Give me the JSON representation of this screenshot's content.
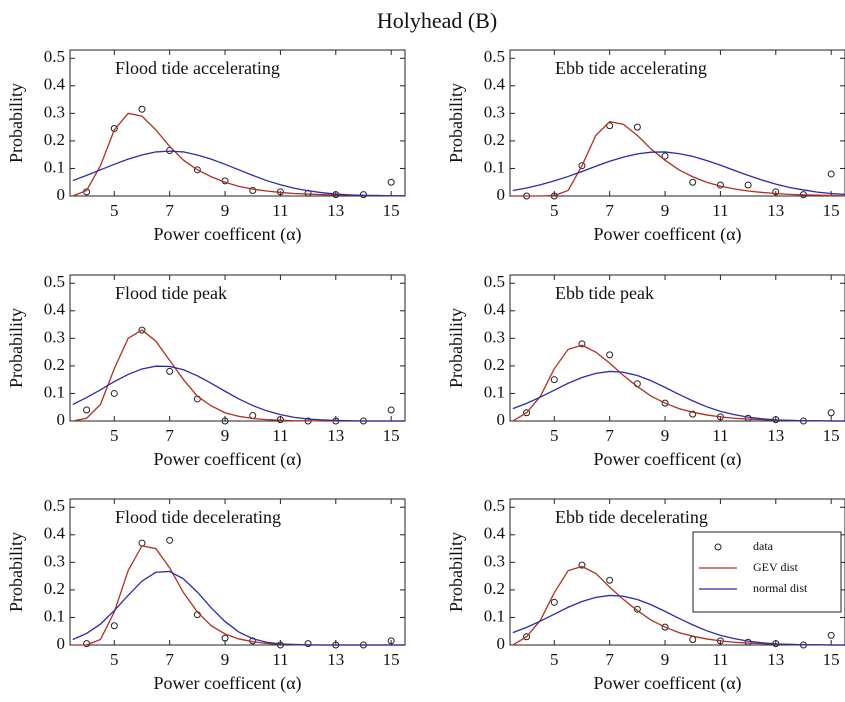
{
  "title": "Holyhead (B)",
  "chart_data": [
    {
      "type": "line",
      "title": "Flood tide accelerating",
      "xlabel": "Power coefficent (α)",
      "ylabel": "Probability",
      "xlim": [
        3.4,
        15.5
      ],
      "ylim": [
        0,
        0.53
      ],
      "xticks": [
        5,
        7,
        9,
        11,
        13,
        15
      ],
      "yticks": [
        0,
        0.1,
        0.2,
        0.3,
        0.4,
        0.5
      ],
      "series": [
        {
          "name": "data",
          "type": "scatter",
          "color": "#222222",
          "x": [
            4,
            5,
            6,
            7,
            8,
            9,
            10,
            11,
            12,
            13,
            14,
            15
          ],
          "values": [
            0.015,
            0.245,
            0.315,
            0.165,
            0.095,
            0.055,
            0.02,
            0.015,
            0.01,
            0.005,
            0.005,
            0.05
          ]
        },
        {
          "name": "GEV dist",
          "type": "line",
          "color": "#b03020",
          "x": [
            3.5,
            4,
            4.5,
            5,
            5.5,
            6,
            6.5,
            7,
            7.5,
            8,
            8.5,
            9,
            9.5,
            10,
            10.5,
            11,
            11.5,
            12,
            12.5,
            13,
            13.5,
            14,
            14.5,
            15,
            15.5
          ],
          "values": [
            0,
            0.02,
            0.11,
            0.24,
            0.3,
            0.29,
            0.24,
            0.18,
            0.13,
            0.095,
            0.07,
            0.05,
            0.035,
            0.025,
            0.018,
            0.013,
            0.009,
            0.007,
            0.005,
            0.004,
            0.003,
            0.002,
            0.002,
            0.001,
            0.001
          ]
        },
        {
          "name": "normal dist",
          "type": "line",
          "color": "#2b2ba8",
          "x": [
            3.5,
            4,
            4.5,
            5,
            5.5,
            6,
            6.5,
            7,
            7.5,
            8,
            8.5,
            9,
            9.5,
            10,
            10.5,
            11,
            11.5,
            12,
            12.5,
            13,
            13.5,
            14,
            14.5,
            15,
            15.5
          ],
          "values": [
            0.056,
            0.075,
            0.095,
            0.115,
            0.134,
            0.149,
            0.16,
            0.163,
            0.16,
            0.149,
            0.134,
            0.115,
            0.095,
            0.075,
            0.056,
            0.041,
            0.028,
            0.019,
            0.012,
            0.007,
            0.004,
            0.002,
            0.001,
            0.001,
            0
          ]
        }
      ]
    },
    {
      "type": "line",
      "title": "Ebb tide accelerating",
      "xlabel": "Power coefficent (α)",
      "ylabel": "Probability",
      "xlim": [
        3.4,
        15.5
      ],
      "ylim": [
        0,
        0.53
      ],
      "xticks": [
        5,
        7,
        9,
        11,
        13,
        15
      ],
      "yticks": [
        0,
        0.1,
        0.2,
        0.3,
        0.4,
        0.5
      ],
      "series": [
        {
          "name": "data",
          "type": "scatter",
          "color": "#222222",
          "x": [
            4,
            5,
            6,
            7,
            8,
            9,
            10,
            11,
            12,
            13,
            14,
            15
          ],
          "values": [
            0,
            0,
            0.11,
            0.255,
            0.25,
            0.145,
            0.05,
            0.04,
            0.04,
            0.015,
            0.005,
            0.08
          ]
        },
        {
          "name": "GEV dist",
          "type": "line",
          "color": "#b03020",
          "x": [
            3.5,
            4,
            4.5,
            5,
            5.5,
            6,
            6.5,
            7,
            7.5,
            8,
            8.5,
            9,
            9.5,
            10,
            10.5,
            11,
            11.5,
            12,
            12.5,
            13,
            13.5,
            14,
            14.5,
            15,
            15.5
          ],
          "values": [
            0,
            0,
            0,
            0.002,
            0.02,
            0.11,
            0.22,
            0.27,
            0.26,
            0.22,
            0.17,
            0.13,
            0.095,
            0.07,
            0.05,
            0.036,
            0.026,
            0.018,
            0.013,
            0.009,
            0.006,
            0.004,
            0.003,
            0.002,
            0.001
          ]
        },
        {
          "name": "normal dist",
          "type": "line",
          "color": "#2b2ba8",
          "x": [
            3.5,
            4,
            4.5,
            5,
            5.5,
            6,
            6.5,
            7,
            7.5,
            8,
            8.5,
            9,
            9.5,
            10,
            10.5,
            11,
            11.5,
            12,
            12.5,
            13,
            13.5,
            14,
            14.5,
            15,
            15.5
          ],
          "values": [
            0.02,
            0.029,
            0.041,
            0.055,
            0.071,
            0.089,
            0.108,
            0.126,
            0.141,
            0.153,
            0.159,
            0.16,
            0.154,
            0.144,
            0.129,
            0.112,
            0.093,
            0.075,
            0.058,
            0.043,
            0.031,
            0.022,
            0.014,
            0.009,
            0.006
          ]
        }
      ]
    },
    {
      "type": "line",
      "title": "Flood tide peak",
      "xlabel": "Power coefficent (α)",
      "ylabel": "Probability",
      "xlim": [
        3.4,
        15.5
      ],
      "ylim": [
        0,
        0.53
      ],
      "xticks": [
        5,
        7,
        9,
        11,
        13,
        15
      ],
      "yticks": [
        0,
        0.1,
        0.2,
        0.3,
        0.4,
        0.5
      ],
      "series": [
        {
          "name": "data",
          "type": "scatter",
          "color": "#222222",
          "x": [
            4,
            5,
            6,
            7,
            8,
            9,
            10,
            11,
            12,
            13,
            14,
            15
          ],
          "values": [
            0.04,
            0.1,
            0.33,
            0.18,
            0.08,
            0,
            0.02,
            0.005,
            0,
            0,
            0,
            0.04
          ]
        },
        {
          "name": "GEV dist",
          "type": "line",
          "color": "#b03020",
          "x": [
            3.5,
            4,
            4.5,
            5,
            5.5,
            6,
            6.5,
            7,
            7.5,
            8,
            8.5,
            9,
            9.5,
            10,
            10.5,
            11,
            11.5,
            12,
            12.5,
            13,
            13.5,
            14,
            14.5,
            15,
            15.5
          ],
          "values": [
            0,
            0.01,
            0.06,
            0.19,
            0.3,
            0.33,
            0.29,
            0.22,
            0.15,
            0.09,
            0.055,
            0.03,
            0.017,
            0.009,
            0.005,
            0.003,
            0.001,
            0.001,
            0,
            0,
            0,
            0,
            0,
            0,
            0
          ]
        },
        {
          "name": "normal dist",
          "type": "line",
          "color": "#2b2ba8",
          "x": [
            3.5,
            4,
            4.5,
            5,
            5.5,
            6,
            6.5,
            7,
            7.5,
            8,
            8.5,
            9,
            9.5,
            10,
            10.5,
            11,
            11.5,
            12,
            12.5,
            13,
            13.5,
            14,
            14.5,
            15,
            15.5
          ],
          "values": [
            0.06,
            0.085,
            0.113,
            0.143,
            0.169,
            0.189,
            0.199,
            0.198,
            0.186,
            0.164,
            0.137,
            0.108,
            0.08,
            0.056,
            0.037,
            0.023,
            0.013,
            0.007,
            0.004,
            0.002,
            0.001,
            0,
            0,
            0,
            0
          ]
        }
      ]
    },
    {
      "type": "line",
      "title": "Ebb tide peak",
      "xlabel": "Power coefficent (α)",
      "ylabel": "Probability",
      "xlim": [
        3.4,
        15.5
      ],
      "ylim": [
        0,
        0.53
      ],
      "xticks": [
        5,
        7,
        9,
        11,
        13,
        15
      ],
      "yticks": [
        0,
        0.1,
        0.2,
        0.3,
        0.4,
        0.5
      ],
      "series": [
        {
          "name": "data",
          "type": "scatter",
          "color": "#222222",
          "x": [
            4,
            5,
            6,
            7,
            8,
            9,
            10,
            11,
            12,
            13,
            14,
            15
          ],
          "values": [
            0.03,
            0.15,
            0.28,
            0.24,
            0.135,
            0.065,
            0.025,
            0.015,
            0.01,
            0.005,
            0,
            0.03
          ]
        },
        {
          "name": "GEV dist",
          "type": "line",
          "color": "#b03020",
          "x": [
            3.5,
            4,
            4.5,
            5,
            5.5,
            6,
            6.5,
            7,
            7.5,
            8,
            8.5,
            9,
            9.5,
            10,
            10.5,
            11,
            11.5,
            12,
            12.5,
            13,
            13.5,
            14,
            14.5,
            15,
            15.5
          ],
          "values": [
            0,
            0.03,
            0.09,
            0.19,
            0.26,
            0.275,
            0.25,
            0.21,
            0.165,
            0.125,
            0.09,
            0.065,
            0.045,
            0.032,
            0.022,
            0.015,
            0.01,
            0.007,
            0.005,
            0.003,
            0.002,
            0.001,
            0.001,
            0,
            0
          ]
        },
        {
          "name": "normal dist",
          "type": "line",
          "color": "#2b2ba8",
          "x": [
            3.5,
            4,
            4.5,
            5,
            5.5,
            6,
            6.5,
            7,
            7.5,
            8,
            8.5,
            9,
            9.5,
            10,
            10.5,
            11,
            11.5,
            12,
            12.5,
            13,
            13.5,
            14,
            14.5,
            15,
            15.5
          ],
          "values": [
            0.045,
            0.064,
            0.087,
            0.112,
            0.137,
            0.158,
            0.173,
            0.18,
            0.177,
            0.165,
            0.146,
            0.122,
            0.097,
            0.073,
            0.052,
            0.035,
            0.023,
            0.014,
            0.008,
            0.004,
            0.002,
            0.001,
            0.001,
            0,
            0
          ]
        }
      ]
    },
    {
      "type": "line",
      "title": "Flood tide decelerating",
      "xlabel": "Power coefficent (α)",
      "ylabel": "Probability",
      "xlim": [
        3.4,
        15.5
      ],
      "ylim": [
        0,
        0.53
      ],
      "xticks": [
        5,
        7,
        9,
        11,
        13,
        15
      ],
      "yticks": [
        0,
        0.1,
        0.2,
        0.3,
        0.4,
        0.5
      ],
      "series": [
        {
          "name": "data",
          "type": "scatter",
          "color": "#222222",
          "x": [
            4,
            5,
            6,
            7,
            8,
            9,
            10,
            11,
            12,
            13,
            14,
            15
          ],
          "values": [
            0.005,
            0.07,
            0.37,
            0.38,
            0.11,
            0.025,
            0.015,
            0,
            0.005,
            0,
            0,
            0.015
          ]
        },
        {
          "name": "GEV dist",
          "type": "line",
          "color": "#b03020",
          "x": [
            3.5,
            4,
            4.5,
            5,
            5.5,
            6,
            6.5,
            7,
            7.5,
            8,
            8.5,
            9,
            9.5,
            10,
            10.5,
            11,
            11.5,
            12,
            12.5,
            13,
            13.5,
            14,
            14.5,
            15,
            15.5
          ],
          "values": [
            0,
            0,
            0.02,
            0.12,
            0.27,
            0.36,
            0.35,
            0.28,
            0.19,
            0.12,
            0.07,
            0.04,
            0.022,
            0.012,
            0.006,
            0.003,
            0.002,
            0.001,
            0,
            0,
            0,
            0,
            0,
            0,
            0
          ]
        },
        {
          "name": "normal dist",
          "type": "line",
          "color": "#2b2ba8",
          "x": [
            3.5,
            4,
            4.5,
            5,
            5.5,
            6,
            6.5,
            7,
            7.5,
            8,
            8.5,
            9,
            9.5,
            10,
            10.5,
            11,
            11.5,
            12,
            12.5,
            13,
            13.5,
            14,
            14.5,
            15,
            15.5
          ],
          "values": [
            0.02,
            0.042,
            0.076,
            0.125,
            0.18,
            0.232,
            0.264,
            0.267,
            0.24,
            0.192,
            0.135,
            0.085,
            0.047,
            0.023,
            0.01,
            0.004,
            0.001,
            0,
            0,
            0,
            0,
            0,
            0,
            0,
            0
          ]
        }
      ]
    },
    {
      "type": "line",
      "title": "Ebb tide decelerating",
      "xlabel": "Power coefficent (α)",
      "ylabel": "Probability",
      "xlim": [
        3.4,
        15.5
      ],
      "ylim": [
        0,
        0.53
      ],
      "xticks": [
        5,
        7,
        9,
        11,
        13,
        15
      ],
      "yticks": [
        0,
        0.1,
        0.2,
        0.3,
        0.4,
        0.5
      ],
      "legend": "center right",
      "series": [
        {
          "name": "data",
          "type": "scatter",
          "color": "#222222",
          "x": [
            4,
            5,
            6,
            7,
            8,
            9,
            10,
            11,
            12,
            13,
            14,
            15
          ],
          "values": [
            0.03,
            0.155,
            0.29,
            0.235,
            0.13,
            0.065,
            0.02,
            0.015,
            0.01,
            0.005,
            0,
            0.035
          ]
        },
        {
          "name": "GEV dist",
          "type": "line",
          "color": "#b03020",
          "x": [
            3.5,
            4,
            4.5,
            5,
            5.5,
            6,
            6.5,
            7,
            7.5,
            8,
            8.5,
            9,
            9.5,
            10,
            10.5,
            11,
            11.5,
            12,
            12.5,
            13,
            13.5,
            14,
            14.5,
            15,
            15.5
          ],
          "values": [
            0,
            0.03,
            0.09,
            0.19,
            0.27,
            0.285,
            0.26,
            0.21,
            0.165,
            0.125,
            0.09,
            0.065,
            0.045,
            0.032,
            0.022,
            0.015,
            0.01,
            0.007,
            0.005,
            0.003,
            0.002,
            0.001,
            0.001,
            0,
            0
          ]
        },
        {
          "name": "normal dist",
          "type": "line",
          "color": "#2b2ba8",
          "x": [
            3.5,
            4,
            4.5,
            5,
            5.5,
            6,
            6.5,
            7,
            7.5,
            8,
            8.5,
            9,
            9.5,
            10,
            10.5,
            11,
            11.5,
            12,
            12.5,
            13,
            13.5,
            14,
            14.5,
            15,
            15.5
          ],
          "values": [
            0.045,
            0.064,
            0.087,
            0.112,
            0.137,
            0.158,
            0.173,
            0.18,
            0.177,
            0.165,
            0.146,
            0.122,
            0.097,
            0.073,
            0.052,
            0.035,
            0.023,
            0.014,
            0.008,
            0.004,
            0.002,
            0.001,
            0.001,
            0,
            0
          ]
        }
      ]
    }
  ]
}
